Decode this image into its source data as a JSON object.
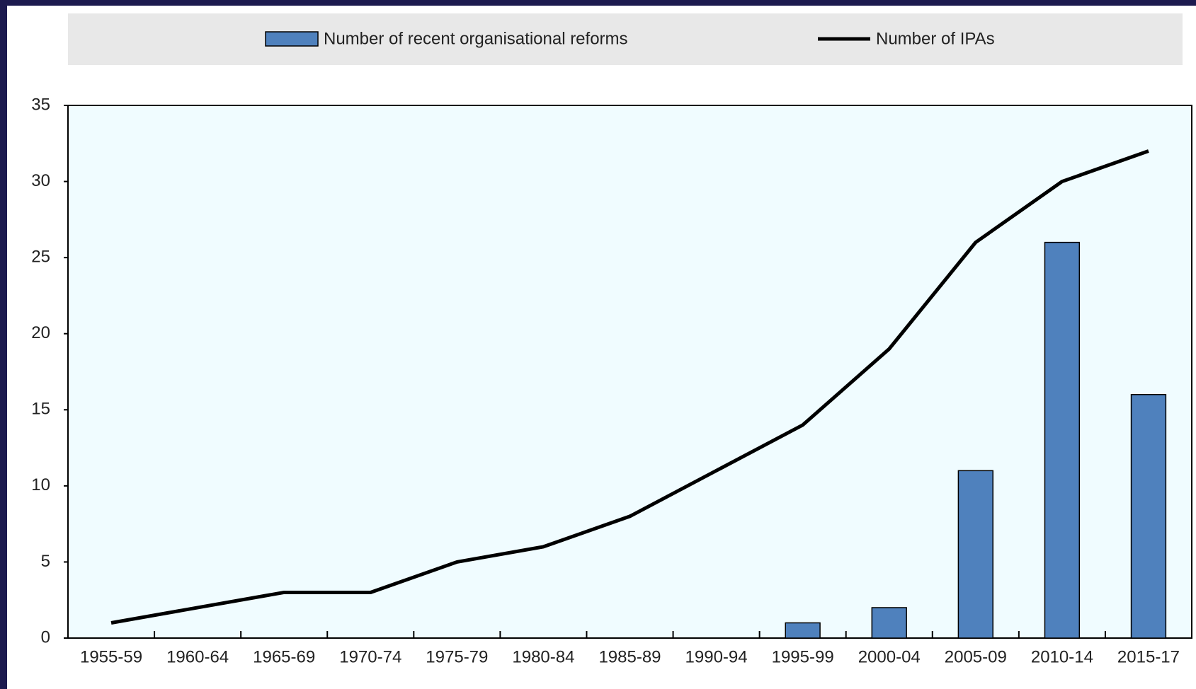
{
  "chart_data": {
    "type": "bar_line",
    "categories": [
      "1955-59",
      "1960-64",
      "1965-69",
      "1970-74",
      "1975-79",
      "1980-84",
      "1985-89",
      "1990-94",
      "1995-99",
      "2000-04",
      "2005-09",
      "2010-14",
      "2015-17"
    ],
    "series": [
      {
        "name": "Number of recent organisational reforms",
        "type": "bar",
        "color": "#4f81bd",
        "values": [
          null,
          null,
          null,
          null,
          null,
          null,
          null,
          null,
          1,
          2,
          11,
          26,
          16
        ]
      },
      {
        "name": "Number of IPAs",
        "type": "line",
        "color": "#000000",
        "values": [
          1,
          2,
          3,
          3,
          5,
          6,
          8,
          11,
          14,
          19,
          26,
          30,
          32
        ]
      }
    ],
    "ylim": [
      0,
      35
    ],
    "yticks": [
      0,
      5,
      10,
      15,
      20,
      25,
      30,
      35
    ]
  }
}
